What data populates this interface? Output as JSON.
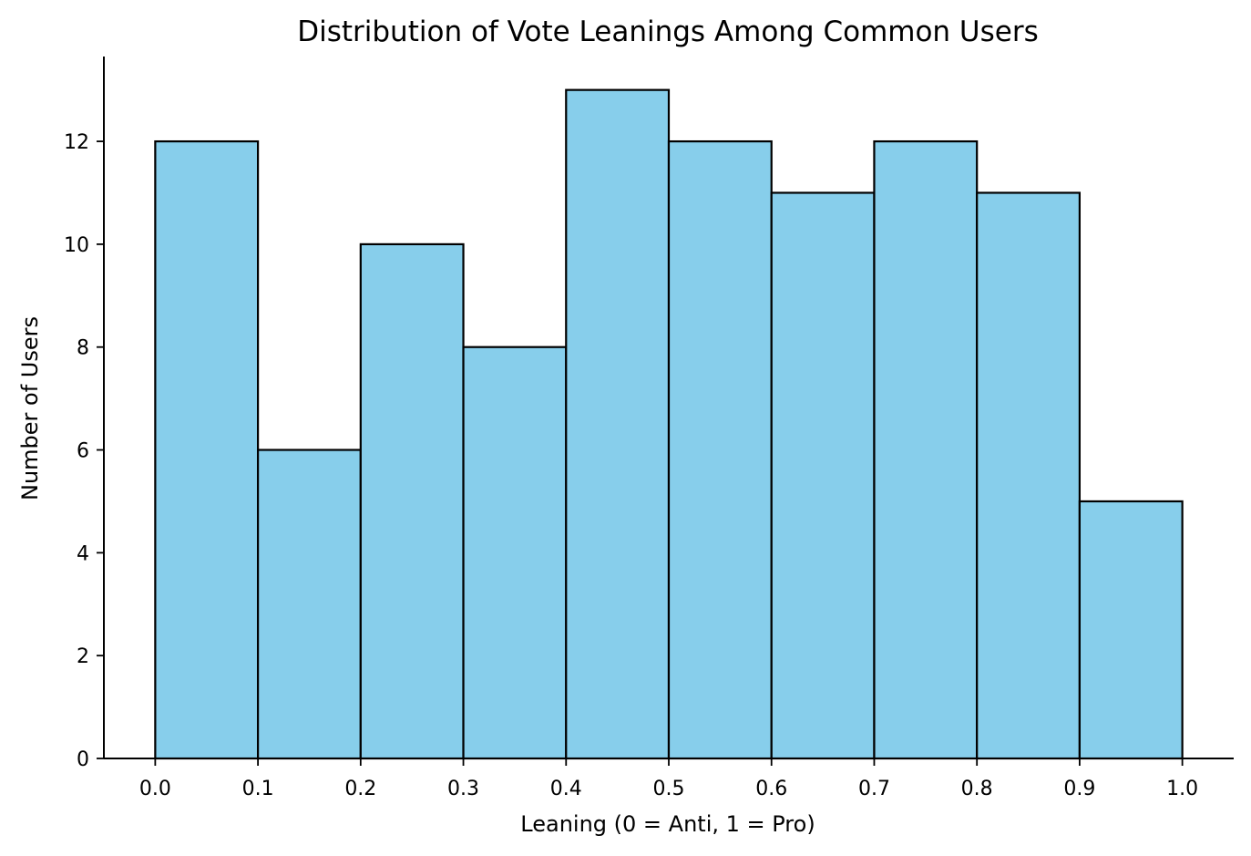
{
  "chart_data": {
    "type": "bar",
    "title": "Distribution of Vote Leanings Among Common Users",
    "xlabel": "Leaning (0 = Anti, 1 = Pro)",
    "ylabel": "Number of Users",
    "bin_edges": [
      0.0,
      0.1,
      0.2,
      0.3,
      0.4,
      0.5,
      0.6,
      0.7,
      0.8,
      0.9,
      1.0
    ],
    "values": [
      12,
      6,
      10,
      8,
      13,
      12,
      11,
      12,
      11,
      5
    ],
    "xlim": [
      -0.05,
      1.05
    ],
    "ylim": [
      0,
      13.65
    ],
    "x_ticks": [
      0.0,
      0.1,
      0.2,
      0.3,
      0.4,
      0.5,
      0.6,
      0.7,
      0.8,
      0.9,
      1.0
    ],
    "x_tick_labels": [
      "0.0",
      "0.1",
      "0.2",
      "0.3",
      "0.4",
      "0.5",
      "0.6",
      "0.7",
      "0.8",
      "0.9",
      "1.0"
    ],
    "y_ticks": [
      0,
      2,
      4,
      6,
      8,
      10,
      12
    ],
    "y_tick_labels": [
      "0",
      "2",
      "4",
      "6",
      "8",
      "10",
      "12"
    ],
    "bar_color": "#87CEEB",
    "edge_color": "#000000",
    "grid": false,
    "legend": "none"
  }
}
